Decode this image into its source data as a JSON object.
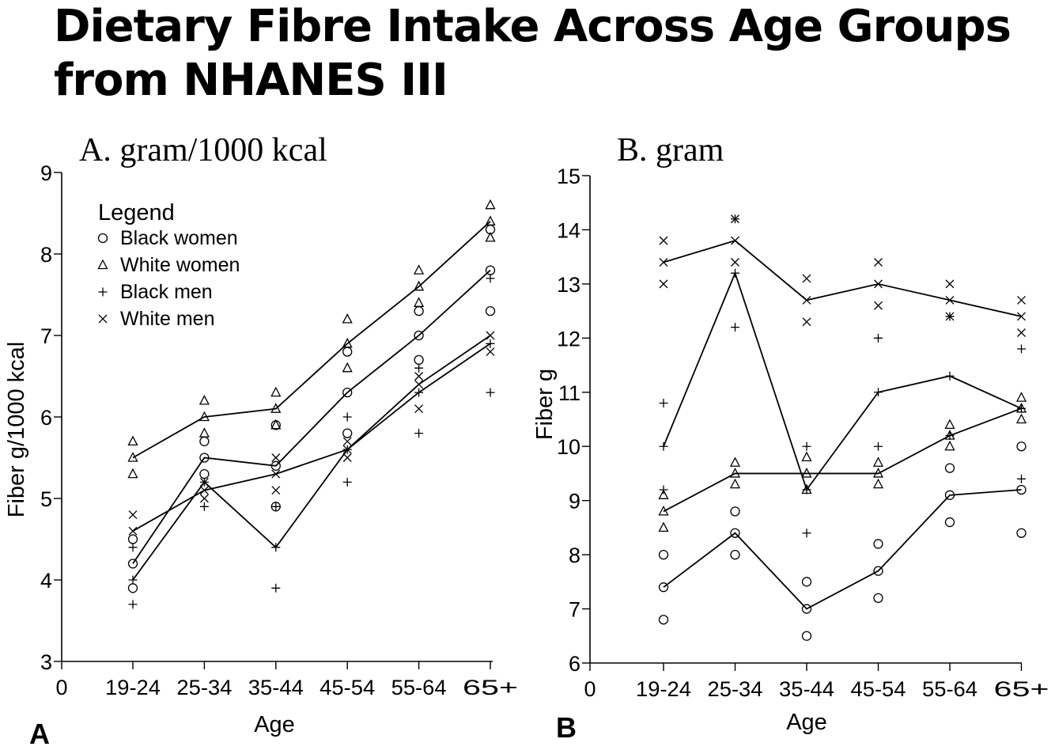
{
  "page": {
    "title_line1": "Dietary Fibre Intake Across Age Groups",
    "title_line2": "from NHANES III"
  },
  "chart_data": [
    {
      "type": "line",
      "panel_letter": "A",
      "subtitle": "A. gram/1000 kcal",
      "xlabel": "Age",
      "ylabel": "Fiber g/1000 kcal",
      "ylim": [
        3,
        9
      ],
      "yticks": [
        3,
        4,
        5,
        6,
        7,
        8,
        9
      ],
      "x_origin_label": "0",
      "categories": [
        "19-24",
        "25-34",
        "35-44",
        "45-54",
        "55-64",
        "65+"
      ],
      "legend": {
        "title": "Legend",
        "entries": [
          {
            "label": "Black women",
            "marker": "circle"
          },
          {
            "label": "White women",
            "marker": "triangle"
          },
          {
            "label": "Black men",
            "marker": "plus"
          },
          {
            "label": "White men",
            "marker": "cross"
          }
        ]
      },
      "series": [
        {
          "name": "White women",
          "marker": "triangle",
          "values": [
            5.5,
            6.0,
            6.1,
            6.9,
            7.6,
            8.4
          ],
          "scatter": [
            [
              5.7,
              5.3
            ],
            [
              6.2,
              5.8
            ],
            [
              6.3,
              5.9
            ],
            [
              7.2,
              6.6
            ],
            [
              7.8,
              7.4
            ],
            [
              8.6,
              8.2
            ]
          ]
        },
        {
          "name": "Black women",
          "marker": "circle",
          "values": [
            4.2,
            5.5,
            5.4,
            6.3,
            7.0,
            7.8
          ],
          "scatter": [
            [
              4.5,
              3.9
            ],
            [
              5.7,
              5.3
            ],
            [
              5.9,
              4.9
            ],
            [
              6.8,
              5.8
            ],
            [
              7.3,
              6.7
            ],
            [
              8.3,
              7.3
            ]
          ]
        },
        {
          "name": "White men",
          "marker": "cross",
          "values": [
            4.6,
            5.1,
            5.3,
            5.6,
            6.4,
            7.0
          ],
          "scatter": [
            [
              4.8
            ],
            [
              5.0,
              5.2
            ],
            [
              5.5,
              5.1
            ],
            [
              5.5,
              5.7
            ],
            [
              6.5,
              6.1
            ],
            [
              6.8
            ]
          ]
        },
        {
          "name": "Black men",
          "marker": "plus",
          "values": [
            4.0,
            5.2,
            4.4,
            5.6,
            6.3,
            6.9
          ],
          "scatter": [
            [
              4.4,
              3.7
            ],
            [
              4.9
            ],
            [
              3.9,
              4.9
            ],
            [
              6.0,
              5.2
            ],
            [
              6.6,
              5.8
            ],
            [
              7.7,
              6.3
            ]
          ]
        }
      ]
    },
    {
      "type": "line",
      "panel_letter": "B",
      "subtitle": "B. gram",
      "xlabel": "Age",
      "ylabel": "Fiber g",
      "ylim": [
        6,
        15
      ],
      "yticks": [
        6,
        7,
        8,
        9,
        10,
        11,
        12,
        13,
        14,
        15
      ],
      "x_origin_label": "0",
      "categories": [
        "19-24",
        "25-34",
        "35-44",
        "45-54",
        "55-64",
        "65+"
      ],
      "series": [
        {
          "name": "White men",
          "marker": "cross",
          "values": [
            13.4,
            13.8,
            12.7,
            13.0,
            12.7,
            12.4
          ],
          "scatter": [
            [
              13.8,
              13.0
            ],
            [
              14.2,
              13.4
            ],
            [
              13.1,
              12.3
            ],
            [
              13.4,
              12.6
            ],
            [
              13.0,
              12.4
            ],
            [
              12.7,
              12.1
            ]
          ]
        },
        {
          "name": "Black men",
          "marker": "plus",
          "values": [
            10.0,
            13.2,
            9.2,
            11.0,
            11.3,
            10.7
          ],
          "scatter": [
            [
              10.8,
              9.2
            ],
            [
              14.2,
              12.2
            ],
            [
              10.0,
              8.4
            ],
            [
              12.0,
              10.0
            ],
            [
              12.4,
              10.2
            ],
            [
              11.8,
              9.4
            ]
          ]
        },
        {
          "name": "White women",
          "marker": "triangle",
          "values": [
            8.8,
            9.5,
            9.5,
            9.5,
            10.2,
            10.7
          ],
          "scatter": [
            [
              9.1,
              8.5
            ],
            [
              9.7,
              9.3
            ],
            [
              9.8,
              9.2
            ],
            [
              9.7,
              9.3
            ],
            [
              10.4,
              10.0
            ],
            [
              10.9,
              10.5
            ]
          ]
        },
        {
          "name": "Black women",
          "marker": "circle",
          "values": [
            7.4,
            8.4,
            7.0,
            7.7,
            9.1,
            9.2
          ],
          "scatter": [
            [
              8.0,
              6.8
            ],
            [
              8.8,
              8.0
            ],
            [
              7.5,
              6.5
            ],
            [
              8.2,
              7.2
            ],
            [
              9.6,
              8.6
            ],
            [
              10.0,
              8.4
            ]
          ]
        }
      ]
    }
  ]
}
